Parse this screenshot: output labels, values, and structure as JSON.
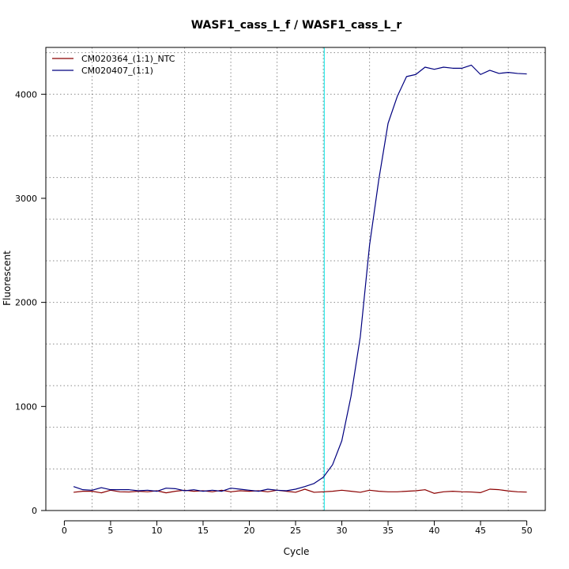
{
  "chart_data": {
    "type": "line",
    "title": "WASF1_cass_L_f / WASF1_cass_L_r",
    "xlabel": "Cycle",
    "ylabel": "Fluorescent",
    "xlim": [
      -2,
      52
    ],
    "ylim": [
      0,
      4450
    ],
    "x_ticks": [
      0,
      5,
      10,
      15,
      20,
      25,
      30,
      35,
      40,
      45,
      50
    ],
    "y_ticks": [
      0,
      1000,
      2000,
      3000,
      4000
    ],
    "x_grid": [
      3,
      8,
      13,
      18,
      23,
      28,
      33,
      38,
      43,
      48
    ],
    "y_grid": [
      400,
      800,
      1200,
      1600,
      2000,
      2400,
      2800,
      3200,
      3600,
      4000,
      4400
    ],
    "grid": true,
    "legend_position": "top-left",
    "threshold_cycle": 28.1,
    "threshold_color": "#00e5e5",
    "x": [
      1,
      2,
      3,
      4,
      5,
      6,
      7,
      8,
      9,
      10,
      11,
      12,
      13,
      14,
      15,
      16,
      17,
      18,
      19,
      20,
      21,
      22,
      23,
      24,
      25,
      26,
      27,
      28,
      29,
      30,
      31,
      32,
      33,
      34,
      35,
      36,
      37,
      38,
      39,
      40,
      41,
      42,
      43,
      44,
      45,
      46,
      47,
      48,
      49,
      50
    ],
    "series": [
      {
        "name": "CM020364_(1:1)_NTC",
        "color": "#8b0000",
        "values": [
          175,
          185,
          185,
          170,
          195,
          180,
          178,
          185,
          180,
          190,
          170,
          185,
          195,
          185,
          190,
          180,
          195,
          180,
          190,
          185,
          190,
          180,
          195,
          185,
          175,
          205,
          175,
          180,
          185,
          195,
          185,
          175,
          195,
          185,
          180,
          180,
          185,
          190,
          200,
          165,
          180,
          185,
          180,
          178,
          172,
          205,
          200,
          188,
          180,
          177
        ]
      },
      {
        "name": "CM020407_(1:1)",
        "color": "#00007f",
        "values": [
          230,
          200,
          195,
          220,
          200,
          200,
          200,
          190,
          195,
          185,
          215,
          210,
          190,
          200,
          185,
          195,
          185,
          215,
          205,
          195,
          185,
          205,
          195,
          190,
          205,
          230,
          260,
          320,
          440,
          670,
          1100,
          1670,
          2550,
          3180,
          3720,
          3980,
          4170,
          4190,
          4260,
          4240,
          4260,
          4250,
          4250,
          4280,
          4190,
          4230,
          4200,
          4210,
          4200,
          4195
        ]
      }
    ]
  }
}
